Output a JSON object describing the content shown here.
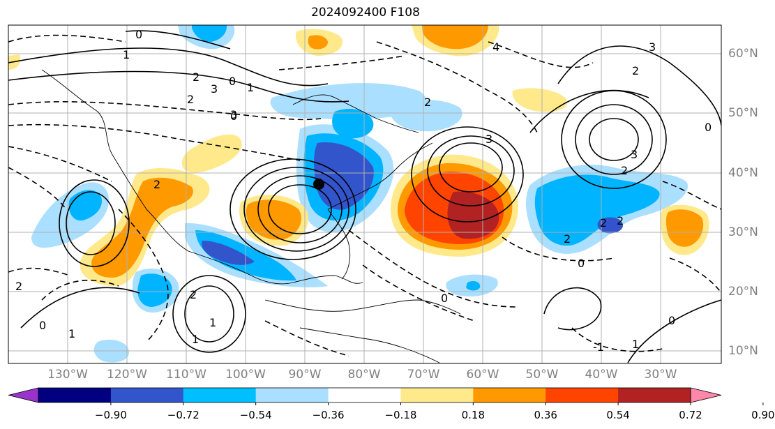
{
  "title": "2024092400 F108",
  "map": {
    "lon_labels": [
      "130°W",
      "120°W",
      "110°W",
      "100°W",
      "90°W",
      "80°W",
      "70°W",
      "60°W",
      "50°W",
      "40°W",
      "30°W"
    ],
    "lat_labels": [
      "60°N",
      "50°N",
      "40°N",
      "30°N",
      "20°N",
      "10°N"
    ]
  },
  "contour_labels": [
    "0",
    "1",
    "2",
    "3",
    "1",
    "0",
    "2",
    "3",
    "2",
    "2",
    "3",
    "4",
    "2",
    "2",
    "2",
    "3",
    "3",
    "0",
    "1",
    "2",
    "1",
    "0",
    "1",
    "2",
    "-1",
    "0",
    "0",
    "1",
    "0",
    "2",
    "2",
    "0"
  ],
  "colorbar": {
    "tick_labels": [
      "−0.90",
      "−0.72",
      "−0.54",
      "−0.36",
      "−0.18",
      "0.18",
      "0.36",
      "0.54",
      "0.72",
      "0.90"
    ],
    "colors": [
      "#9933cc",
      "#000080",
      "#3355cc",
      "#00bfff",
      "#aadfff",
      "#ffffff",
      "#ffe98a",
      "#ff9900",
      "#ff4400",
      "#b22222",
      "#ff88aa"
    ]
  },
  "palette": {
    "light_blue": "#aadfff",
    "blue": "#00b4ff",
    "dark_blue": "#3355cc",
    "yellow": "#ffe98a",
    "orange": "#ff9900",
    "red_orange": "#ff4400",
    "dark_red": "#b22222"
  }
}
